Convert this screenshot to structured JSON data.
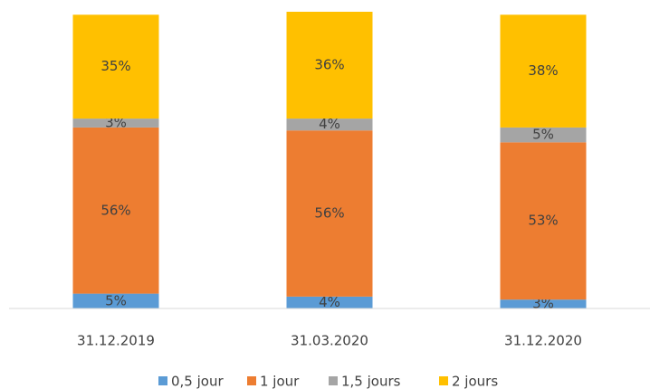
{
  "chart_data": {
    "type": "stacked_bar",
    "categories": [
      "31.12.2019",
      "31.03.2020",
      "31.12.2020"
    ],
    "series": [
      {
        "name": "0,5 jour",
        "color": "#5b9bd5",
        "values": [
          5,
          4,
          3
        ],
        "value_labels": [
          "5%",
          "4%",
          "3%"
        ]
      },
      {
        "name": "1 jour",
        "color": "#ed7d31",
        "values": [
          56,
          56,
          53
        ],
        "value_labels": [
          "56%",
          "56%",
          "53%"
        ]
      },
      {
        "name": "1,5 jours",
        "color": "#a5a5a5",
        "values": [
          3,
          4,
          5
        ],
        "value_labels": [
          "3%",
          "4%",
          "5%"
        ]
      },
      {
        "name": "2 jours",
        "color": "#ffc000",
        "values": [
          35,
          36,
          38
        ],
        "value_labels": [
          "35%",
          "36%",
          "38%"
        ]
      }
    ],
    "ylim": [
      0,
      100
    ],
    "legend": "bottom"
  }
}
